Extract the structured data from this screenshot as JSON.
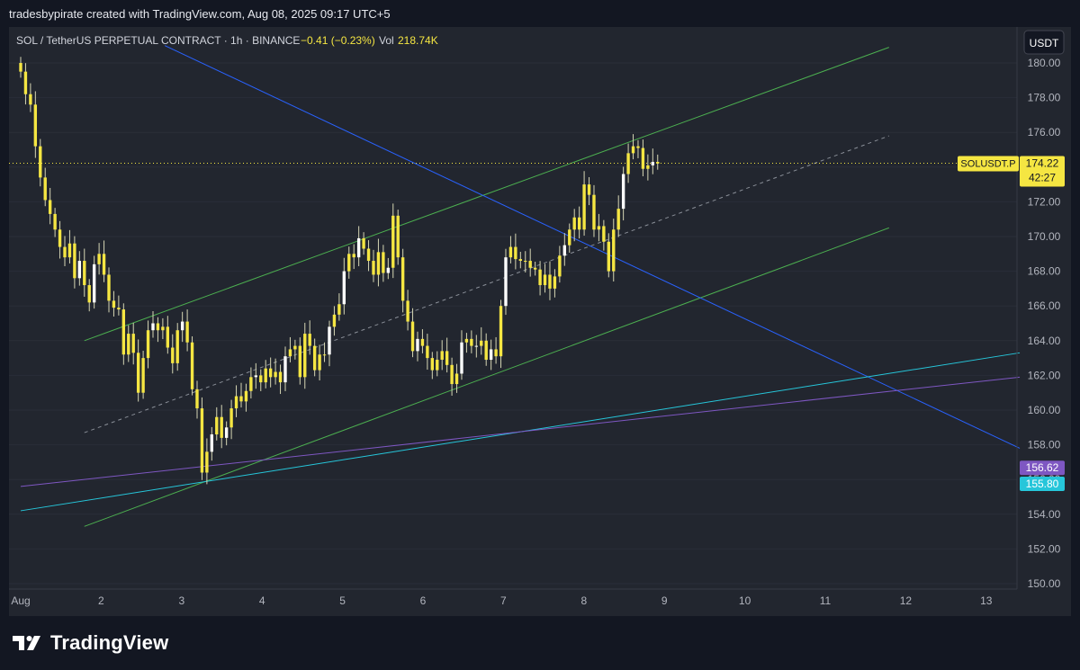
{
  "header": {
    "attribution": "tradesbypirate created with TradingView.com, Aug 08, 2025 09:17 UTC+5"
  },
  "legend": {
    "symbol": "SOL / TetherUS PERPETUAL CONTRACT · 1h · BINANCE",
    "change": "−0.41 (−0.23%)",
    "vol_label": "Vol",
    "vol_value": "218.74K"
  },
  "currency_button": "USDT",
  "footer": {
    "brand": "TradingView"
  },
  "colors": {
    "background": "#22262f",
    "candle": "#f5e642",
    "wick": "#d6d6b4",
    "candle_alt": "#ffffff",
    "channel": "#4caf50",
    "downtrend": "#2962ff",
    "cyan_line": "#26c6da",
    "purple_line": "#7e57c2",
    "price_tag": "#f5e642",
    "purple_tag": "#7e57c2",
    "cyan_tag": "#26c6da"
  },
  "chart_data": {
    "type": "candlestick",
    "symbol": "SOLUSDT.P",
    "timeframe": "1h",
    "y_axis": {
      "min": 150,
      "max": 180,
      "ticks": [
        "180.00",
        "178.00",
        "176.00",
        "174.00",
        "172.00",
        "170.00",
        "168.00",
        "166.00",
        "164.00",
        "162.00",
        "160.00",
        "158.00",
        "156.00",
        "154.00",
        "152.00",
        "150.00"
      ]
    },
    "x_axis": {
      "labels": [
        "Aug",
        "2",
        "3",
        "4",
        "5",
        "6",
        "7",
        "8",
        "9",
        "10",
        "11",
        "12",
        "13"
      ]
    },
    "last_price": {
      "symbol_label": "SOLUSDT.P",
      "value": "174.22",
      "countdown": "42:27"
    },
    "level_tags": [
      {
        "value": "156.62",
        "color": "#7e57c2"
      },
      {
        "value": "155.80",
        "color": "#26c6da"
      }
    ],
    "closes": [
      179.5,
      178.2,
      177.6,
      175.2,
      173.4,
      172.1,
      171.3,
      170.4,
      169.4,
      168.8,
      169.6,
      167.6,
      168.6,
      167.2,
      166.2,
      168.4,
      169.0,
      167.8,
      166.3,
      165.9,
      165.8,
      163.2,
      164.4,
      163.3,
      161.0,
      163.0,
      164.6,
      165.0,
      164.6,
      164.8,
      163.6,
      162.7,
      164.6,
      165.1,
      163.9,
      161.2,
      160.1,
      156.4,
      157.6,
      158.6,
      159.6,
      158.4,
      159.0,
      160.1,
      160.8,
      160.5,
      161.1,
      161.9,
      162.0,
      161.6,
      162.4,
      161.9,
      162.2,
      161.6,
      163.1,
      163.5,
      163.7,
      161.9,
      164.4,
      163.7,
      162.3,
      163.2,
      163.2,
      164.8,
      165.5,
      166.1,
      168.0,
      169.0,
      168.8,
      169.9,
      169.3,
      168.6,
      167.8,
      169.1,
      167.9,
      168.2,
      171.2,
      168.8,
      166.3,
      165.1,
      163.4,
      164.1,
      163.7,
      163.0,
      162.3,
      162.9,
      163.4,
      162.6,
      161.5,
      162.1,
      163.9,
      164.1,
      163.7,
      163.7,
      164.0,
      162.9,
      163.5,
      163.1,
      166.0,
      168.8,
      169.4,
      168.7,
      168.6,
      168.6,
      168.2,
      168.1,
      167.2,
      167.8,
      167.0,
      167.7,
      168.9,
      169.5,
      170.4,
      171.1,
      170.4,
      173.0,
      172.4,
      170.4,
      170.6,
      169.7,
      168.0,
      170.4,
      171.6,
      173.6,
      174.8,
      175.2,
      175.1,
      173.9,
      174.1,
      174.3,
      174.2
    ],
    "trend_lines": [
      {
        "name": "channel-upper",
        "style": "solid",
        "color": "#4caf50",
        "from": {
          "x": "Aug 1 19:00",
          "y": 164.0
        },
        "to": {
          "x": "Aug 11 19:00",
          "y": 180.9
        }
      },
      {
        "name": "channel-mid",
        "style": "dashed",
        "color": "#8a8f98",
        "from": {
          "x": "Aug 1 19:00",
          "y": 158.7
        },
        "to": {
          "x": "Aug 11 19:00",
          "y": 175.8
        }
      },
      {
        "name": "channel-lower",
        "style": "solid",
        "color": "#4caf50",
        "from": {
          "x": "Aug 1 19:00",
          "y": 153.3
        },
        "to": {
          "x": "Aug 11 19:00",
          "y": 170.5
        }
      },
      {
        "name": "downtrend",
        "style": "solid",
        "color": "#2962ff",
        "from": {
          "x": "Aug 2 19:00",
          "y": 181.0
        },
        "to": {
          "x": "Aug 13 10:00",
          "y": 157.8
        }
      },
      {
        "name": "cyan-support",
        "style": "solid",
        "color": "#26c6da",
        "from": {
          "x": "Aug 1 00:00",
          "y": 154.2
        },
        "to": {
          "x": "Aug 13 10:00",
          "y": 163.3
        }
      },
      {
        "name": "purple-support",
        "style": "solid",
        "color": "#7e57c2",
        "from": {
          "x": "Aug 1 00:00",
          "y": 155.6
        },
        "to": {
          "x": "Aug 13 10:00",
          "y": 161.9
        }
      }
    ]
  }
}
